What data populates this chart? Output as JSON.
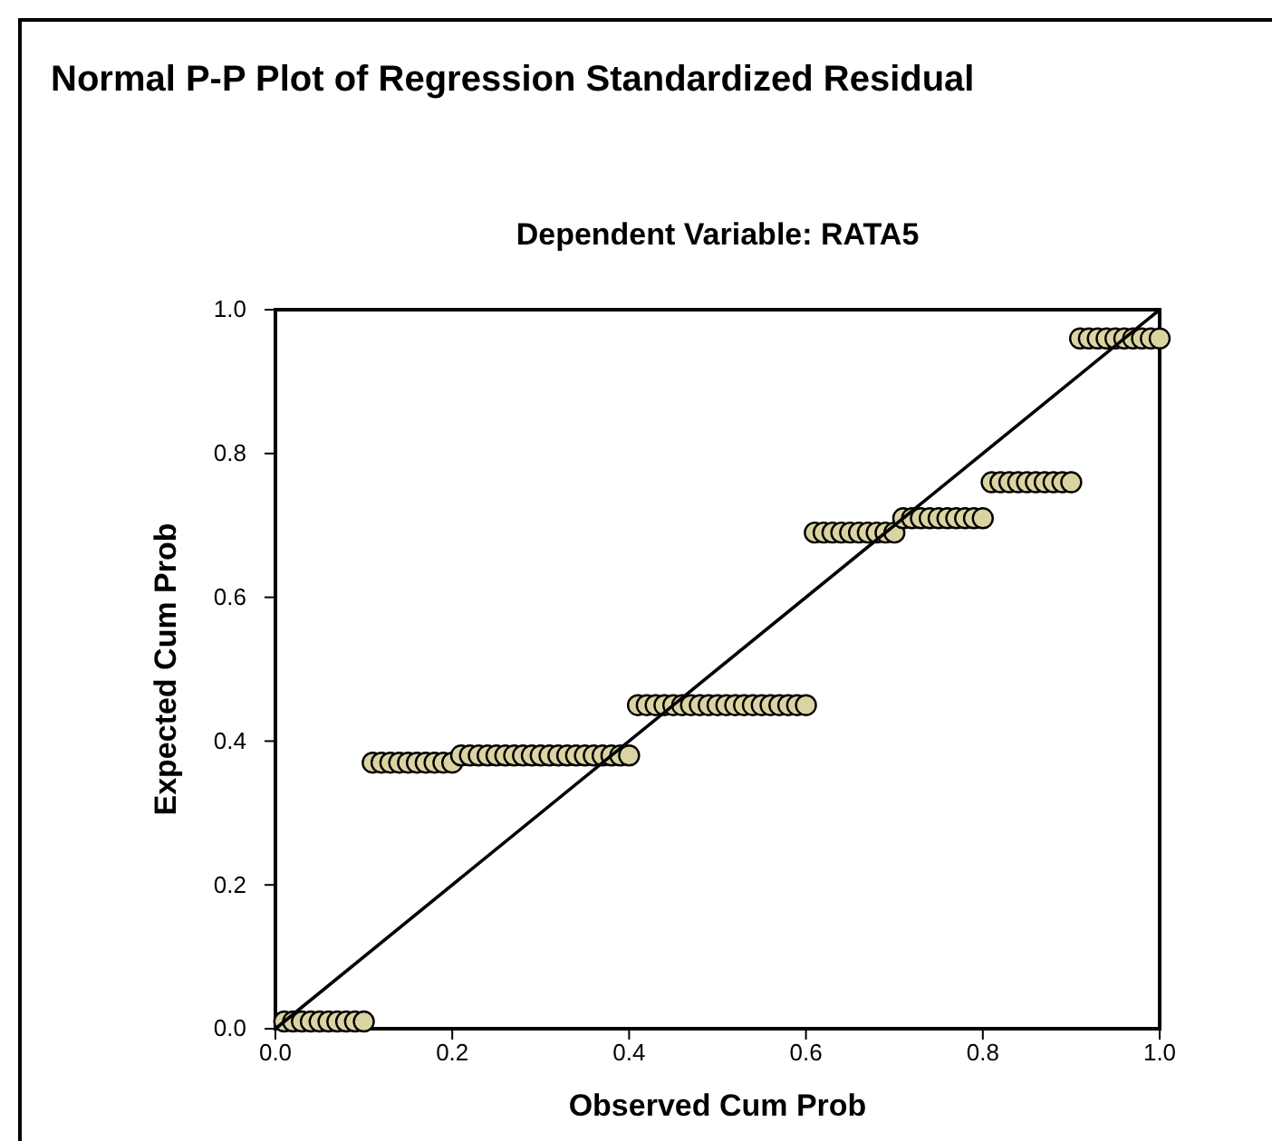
{
  "chart_data": {
    "type": "scatter",
    "title": "Normal P-P Plot of Regression Standardized Residual",
    "subtitle": "Dependent Variable: RATA5",
    "xlabel": "Observed Cum Prob",
    "ylabel": "Expected Cum Prob",
    "xlim": [
      0,
      1
    ],
    "ylim": [
      0,
      1
    ],
    "xticks": [
      {
        "value": 0,
        "label": "0.0"
      },
      {
        "value": 0.2,
        "label": "0.2"
      },
      {
        "value": 0.4,
        "label": "0.4"
      },
      {
        "value": 0.6,
        "label": "0.6"
      },
      {
        "value": 0.8,
        "label": "0.8"
      },
      {
        "value": 1,
        "label": "1.0"
      }
    ],
    "yticks": [
      {
        "value": 0,
        "label": "0.0"
      },
      {
        "value": 0.2,
        "label": "0.2"
      },
      {
        "value": 0.4,
        "label": "0.4"
      },
      {
        "value": 0.6,
        "label": "0.6"
      },
      {
        "value": 0.8,
        "label": "0.8"
      },
      {
        "value": 1,
        "label": "1.0"
      }
    ],
    "grid": false,
    "marker": "circle",
    "series": [
      {
        "color": "#dbd4a2",
        "x": [
          0.01,
          0.02,
          0.03,
          0.04,
          0.05,
          0.06,
          0.07,
          0.08,
          0.09,
          0.1,
          0.11,
          0.12,
          0.13,
          0.14,
          0.15,
          0.16,
          0.17,
          0.18,
          0.19,
          0.2,
          0.21,
          0.22,
          0.23,
          0.24,
          0.25,
          0.26,
          0.27,
          0.28,
          0.29,
          0.3,
          0.31,
          0.32,
          0.33,
          0.34,
          0.35,
          0.36,
          0.37,
          0.38,
          0.39,
          0.4,
          0.41,
          0.42,
          0.43,
          0.44,
          0.45,
          0.46,
          0.47,
          0.48,
          0.49,
          0.5,
          0.51,
          0.52,
          0.53,
          0.54,
          0.55,
          0.56,
          0.57,
          0.58,
          0.59,
          0.6,
          0.61,
          0.62,
          0.63,
          0.64,
          0.65,
          0.66,
          0.67,
          0.68,
          0.69,
          0.7,
          0.71,
          0.72,
          0.73,
          0.74,
          0.75,
          0.76,
          0.77,
          0.78,
          0.79,
          0.8,
          0.81,
          0.82,
          0.83,
          0.84,
          0.85,
          0.86,
          0.87,
          0.88,
          0.89,
          0.9,
          0.91,
          0.92,
          0.93,
          0.94,
          0.95,
          0.96,
          0.97,
          0.98,
          0.99,
          1.0
        ],
        "values": [
          0.01,
          0.01,
          0.01,
          0.01,
          0.01,
          0.01,
          0.01,
          0.01,
          0.01,
          0.01,
          0.37,
          0.37,
          0.37,
          0.37,
          0.37,
          0.37,
          0.37,
          0.37,
          0.37,
          0.37,
          0.38,
          0.38,
          0.38,
          0.38,
          0.38,
          0.38,
          0.38,
          0.38,
          0.38,
          0.38,
          0.38,
          0.38,
          0.38,
          0.38,
          0.38,
          0.38,
          0.38,
          0.38,
          0.38,
          0.38,
          0.45,
          0.45,
          0.45,
          0.45,
          0.45,
          0.45,
          0.45,
          0.45,
          0.45,
          0.45,
          0.45,
          0.45,
          0.45,
          0.45,
          0.45,
          0.45,
          0.45,
          0.45,
          0.45,
          0.45,
          0.69,
          0.69,
          0.69,
          0.69,
          0.69,
          0.69,
          0.69,
          0.69,
          0.69,
          0.69,
          0.71,
          0.71,
          0.71,
          0.71,
          0.71,
          0.71,
          0.71,
          0.71,
          0.71,
          0.71,
          0.76,
          0.76,
          0.76,
          0.76,
          0.76,
          0.76,
          0.76,
          0.76,
          0.76,
          0.76,
          0.96,
          0.96,
          0.96,
          0.96,
          0.96,
          0.96,
          0.96,
          0.96,
          0.96,
          0.96
        ]
      },
      {
        "type": "line",
        "color": "#000000",
        "marker": "none",
        "line_style": "solid",
        "x": [
          0,
          1
        ],
        "values": [
          0,
          1
        ]
      }
    ]
  }
}
